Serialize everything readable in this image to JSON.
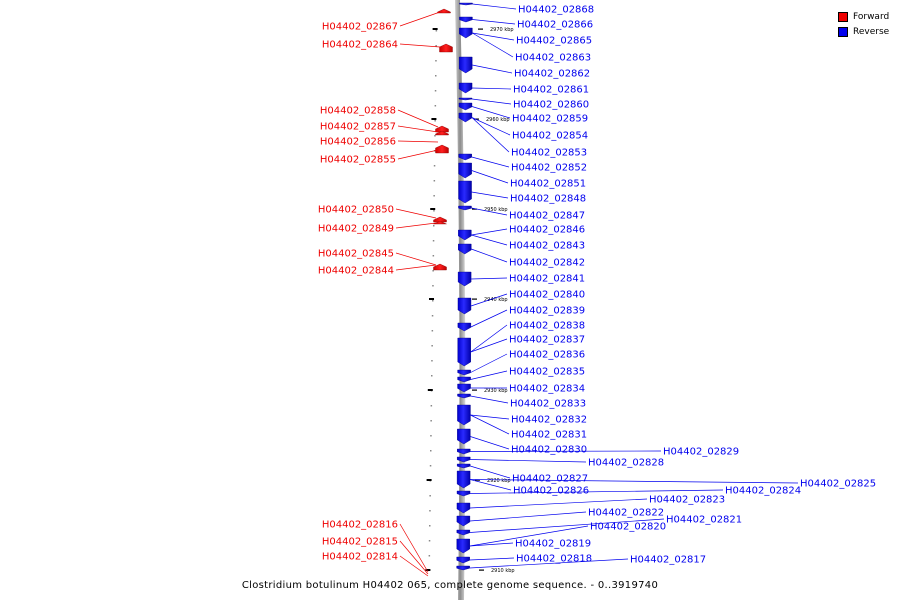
{
  "caption": "Clostridium botulinum H04402 065, complete genome sequence. - 0..3919740",
  "colors": {
    "forward": "#ee0000",
    "reverse": "#0000ee",
    "backbone": "#9a9a9a"
  },
  "legend": [
    {
      "label": "Forward",
      "color": "#ee0000"
    },
    {
      "label": "Reverse",
      "color": "#0000ee"
    }
  ],
  "scale_labels": [
    "2970 kbp",
    "2960 kbp",
    "2950 kbp",
    "2940 kbp",
    "2930 kbp",
    "2920 kbp",
    "2910 kbp"
  ],
  "forward_genes": [
    "H04402_02867",
    "H04402_02864",
    "H04402_02858",
    "H04402_02857",
    "H04402_02856",
    "H04402_02855",
    "H04402_02850",
    "H04402_02849",
    "H04402_02845",
    "H04402_02844",
    "H04402_02816",
    "H04402_02815",
    "H04402_02814"
  ],
  "reverse_genes": [
    "H04402_02868",
    "H04402_02866",
    "H04402_02865",
    "H04402_02863",
    "H04402_02862",
    "H04402_02861",
    "H04402_02860",
    "H04402_02859",
    "H04402_02854",
    "H04402_02853",
    "H04402_02852",
    "H04402_02851",
    "H04402_02848",
    "H04402_02847",
    "H04402_02846",
    "H04402_02843",
    "H04402_02842",
    "H04402_02841",
    "H04402_02840",
    "H04402_02839",
    "H04402_02838",
    "H04402_02837",
    "H04402_02836",
    "H04402_02835",
    "H04402_02834",
    "H04402_02833",
    "H04402_02832",
    "H04402_02831",
    "H04402_02830",
    "H04402_02829",
    "H04402_02828",
    "H04402_02827",
    "H04402_02826",
    "H04402_02825",
    "H04402_02824",
    "H04402_02823",
    "H04402_02822",
    "H04402_02821",
    "H04402_02820",
    "H04402_02819",
    "H04402_02818",
    "H04402_02817"
  ]
}
